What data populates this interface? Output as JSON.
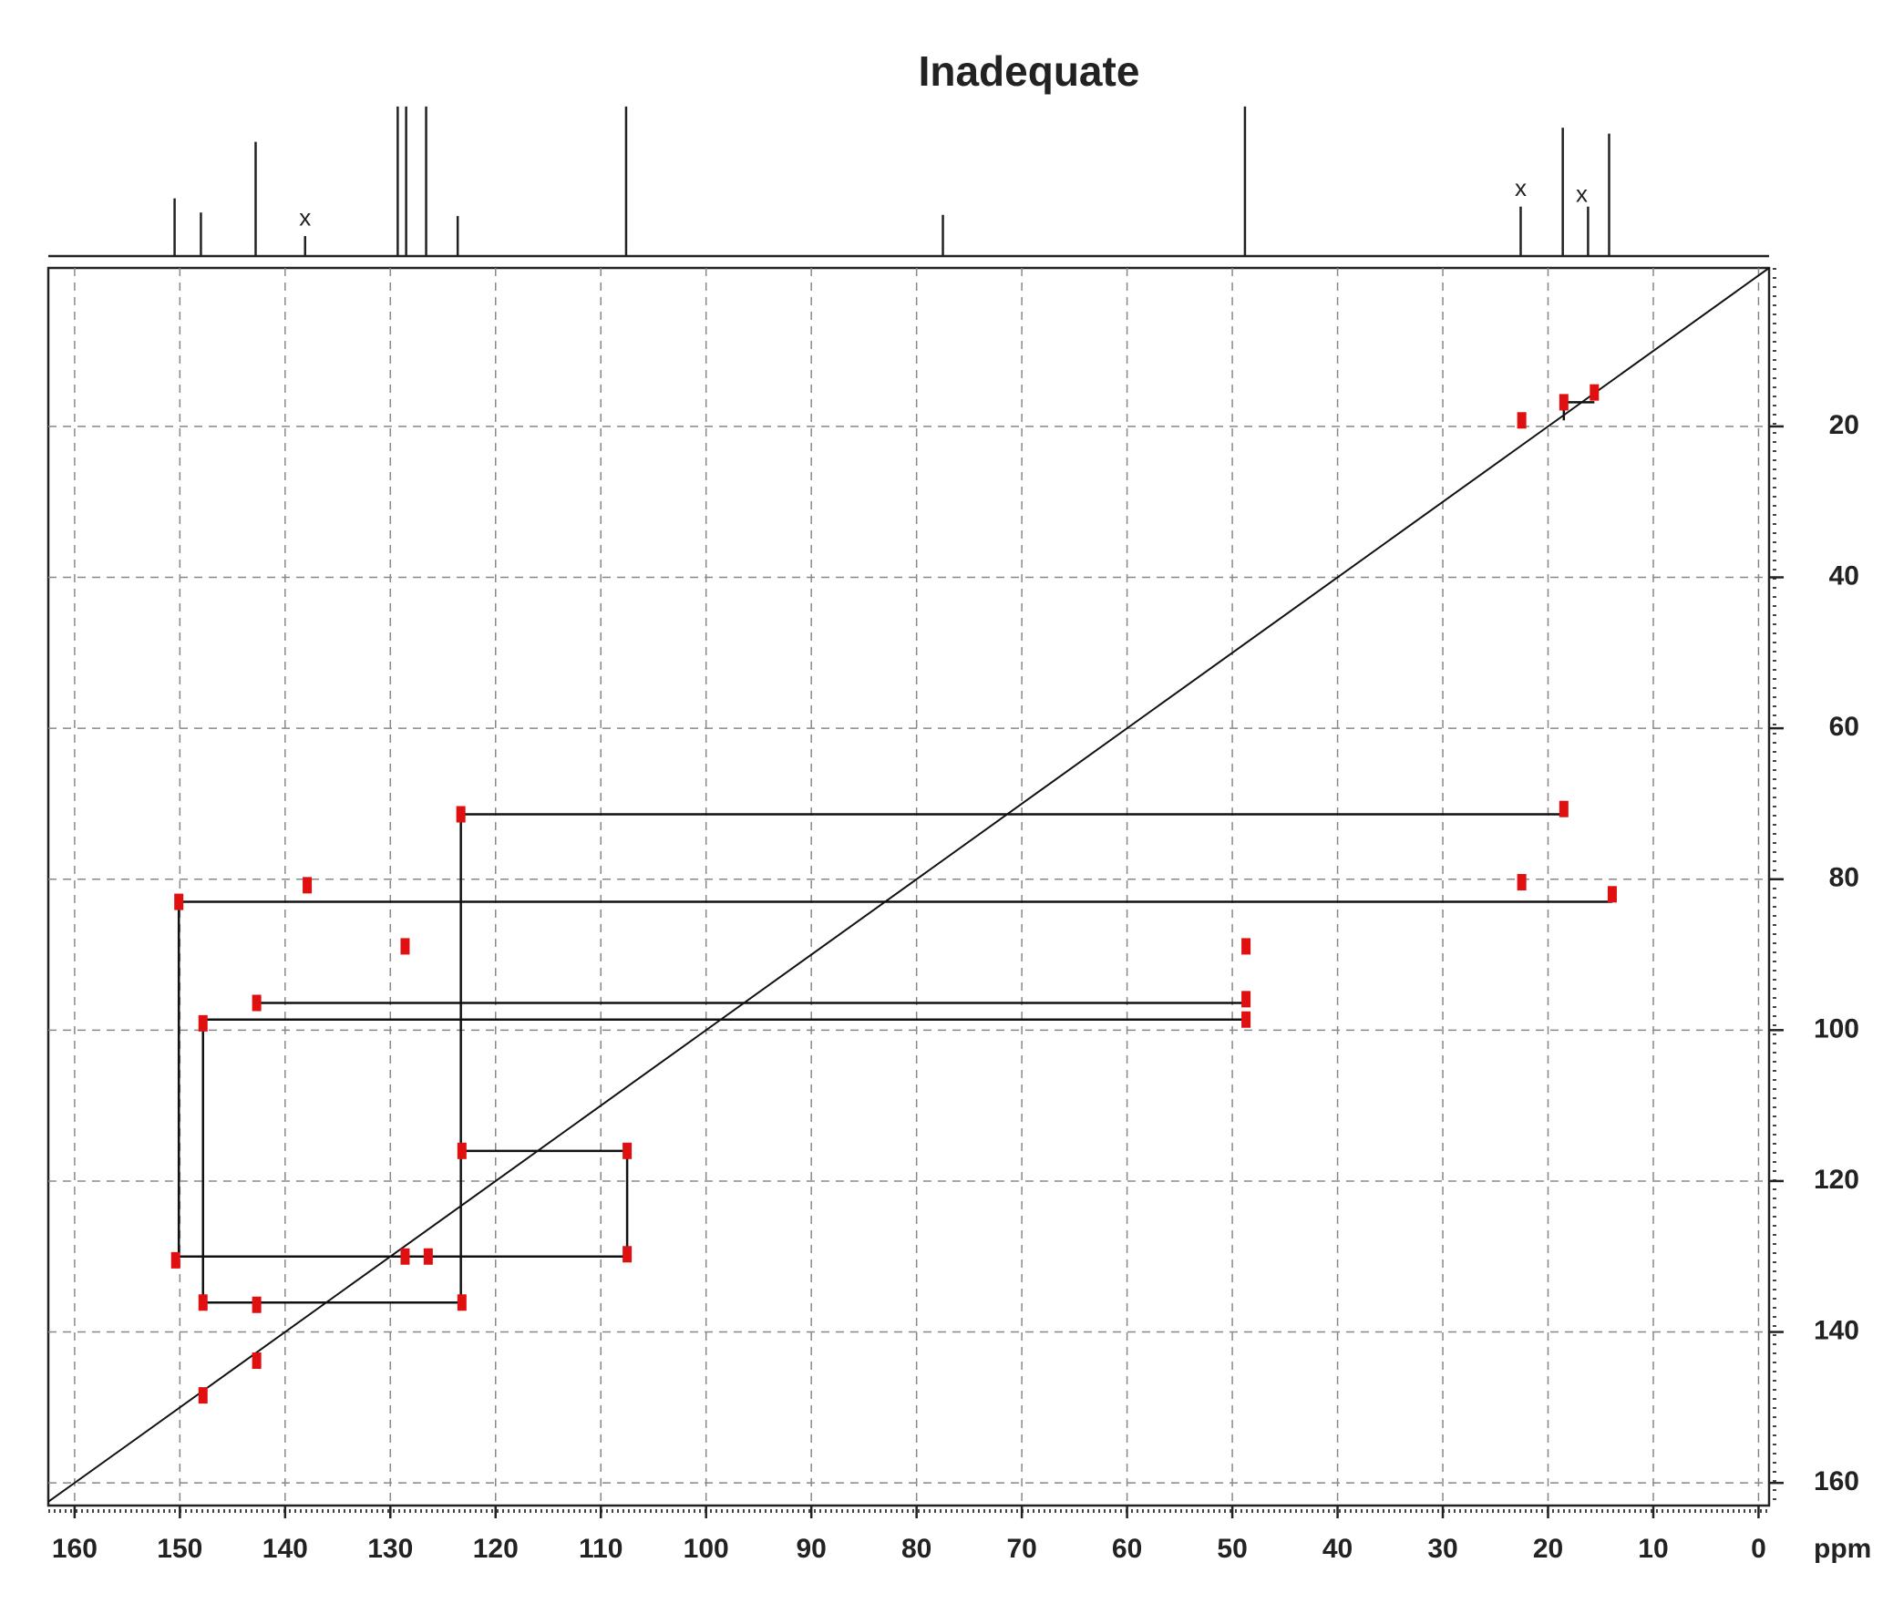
{
  "chart_data": {
    "type": "inadequate",
    "title": "Inadequate",
    "x_unit": "ppm",
    "xlim": [
      162.5,
      -1
    ],
    "ylim": [
      -1,
      163
    ],
    "xticks": [
      160,
      150,
      140,
      130,
      120,
      110,
      100,
      90,
      80,
      70,
      60,
      50,
      40,
      30,
      20,
      10,
      0
    ],
    "yticks": [
      20,
      40,
      60,
      80,
      100,
      120,
      140,
      160
    ],
    "grid": true,
    "color": "#e01010",
    "line_color": "#111111",
    "spectrum": {
      "ylim": [
        0,
        130
      ],
      "ppm": [
        150.5,
        148,
        142.8,
        138.1,
        129.3,
        128.5,
        126.6,
        123.6,
        107.6,
        77.5,
        48.8,
        22.6,
        18.6,
        16.2,
        14.2
      ],
      "intensity": [
        49,
        37,
        97,
        17,
        127,
        127,
        127,
        34,
        127,
        35,
        127,
        42,
        109,
        42,
        104
      ]
    },
    "annotations": [
      {
        "text": "x",
        "x": 138.1,
        "y": 22
      },
      {
        "text": "x",
        "x": 22.6,
        "y": 47
      },
      {
        "text": "x",
        "x": 16.8,
        "y": 42
      }
    ],
    "cross_peaks": {
      "x": [
        18.5,
        123.3,
        13.9,
        150.1,
        137.9,
        22.5,
        128.6,
        48.7,
        142.7,
        48.7,
        147.8,
        48.7,
        123.2,
        107.5,
        107.5,
        150.4,
        128.6,
        126.4,
        142.7,
        147.8,
        123.2,
        142.7,
        147.8,
        18.5,
        15.6,
        22.5
      ],
      "y": [
        70.7,
        71.4,
        82,
        83,
        80.8,
        80.4,
        88.9,
        88.9,
        96.4,
        95.9,
        99.1,
        98.6,
        116,
        116,
        129.7,
        130.5,
        130,
        130,
        136.4,
        136.1,
        136.1,
        143.8,
        148.4,
        16.8,
        15.5,
        19.2
      ]
    },
    "connections": [
      {
        "x1": 123.3,
        "y1": 71.4,
        "x2": 18.5,
        "y2": 71.4
      },
      {
        "x1": 123.3,
        "y1": 71.4,
        "x2": 123.3,
        "y2": 136.1
      },
      {
        "x1": 150.1,
        "y1": 83,
        "x2": 13.9,
        "y2": 83
      },
      {
        "x1": 150.1,
        "y1": 83,
        "x2": 150.1,
        "y2": 130.5
      },
      {
        "x1": 142.7,
        "y1": 96.4,
        "x2": 48.7,
        "y2": 96.4
      },
      {
        "x1": 147.8,
        "y1": 98.6,
        "x2": 48.7,
        "y2": 98.6
      },
      {
        "x1": 147.8,
        "y1": 98.6,
        "x2": 147.8,
        "y2": 136.1
      },
      {
        "x1": 123.2,
        "y1": 116,
        "x2": 107.5,
        "y2": 116
      },
      {
        "x1": 107.5,
        "y1": 116,
        "x2": 107.5,
        "y2": 129.7
      },
      {
        "x1": 150.4,
        "y1": 130,
        "x2": 107.5,
        "y2": 130
      },
      {
        "x1": 147.8,
        "y1": 136.1,
        "x2": 123.2,
        "y2": 136.1
      },
      {
        "x1": 18.5,
        "y1": 16.8,
        "x2": 15.6,
        "y2": 16.8
      },
      {
        "x1": 18.5,
        "y1": 16.8,
        "x2": 18.5,
        "y2": 19.2
      }
    ]
  }
}
